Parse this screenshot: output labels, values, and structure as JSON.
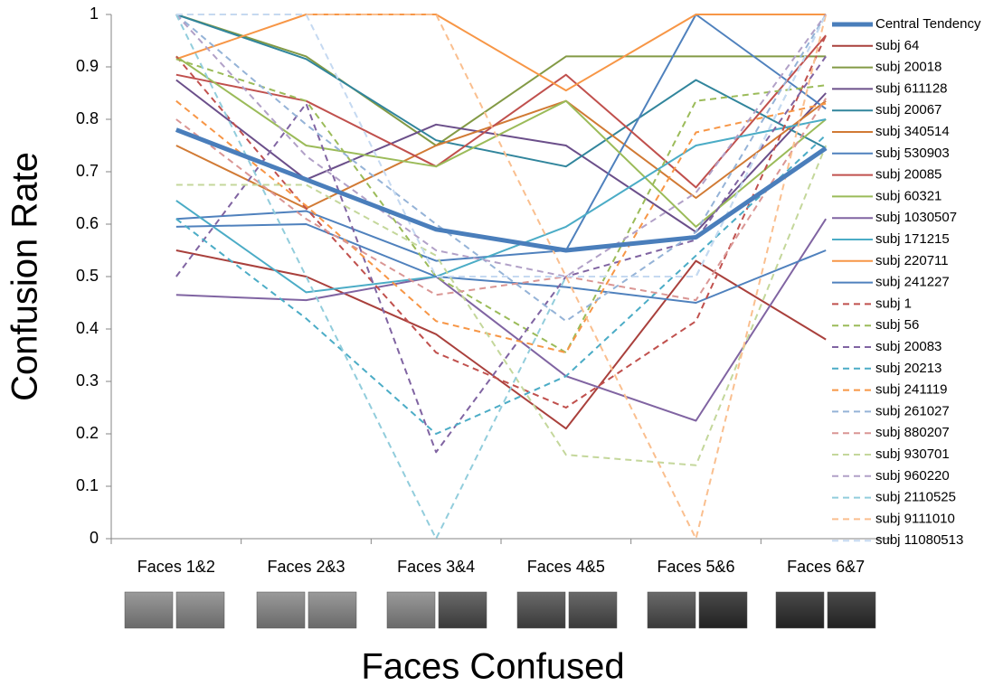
{
  "chart_data": {
    "type": "line",
    "x_label": "Faces Confused",
    "y_label": "Confusion Rate",
    "categories": [
      "Faces 1&2",
      "Faces 2&3",
      "Faces 3&4",
      "Faces 4&5",
      "Faces 5&6",
      "Faces 6&7"
    ],
    "ylim": [
      0,
      1
    ],
    "yticks": [
      0,
      0.1,
      0.2,
      0.3,
      0.4,
      0.5,
      0.6,
      0.7,
      0.8,
      0.9,
      1
    ],
    "legend": "right",
    "series": [
      {
        "name": "Central Tendency",
        "color": "#4a7ebb",
        "style": "thick",
        "values": [
          0.78,
          0.685,
          0.59,
          0.55,
          0.575,
          0.745
        ]
      },
      {
        "name": "subj 64",
        "color": "#a9403c",
        "style": "solid",
        "values": [
          0.55,
          0.5,
          0.39,
          0.21,
          0.53,
          0.38
        ]
      },
      {
        "name": "subj 20018",
        "color": "#839a45",
        "style": "solid",
        "values": [
          1,
          0.92,
          0.75,
          0.92,
          0.92,
          0.92
        ]
      },
      {
        "name": "subj 611128",
        "color": "#6b4f8a",
        "style": "solid",
        "values": [
          0.875,
          0.685,
          0.79,
          0.75,
          0.585,
          0.85
        ]
      },
      {
        "name": "subj 20067",
        "color": "#31859c",
        "style": "solid",
        "values": [
          1,
          0.915,
          0.76,
          0.71,
          0.875,
          0.745
        ]
      },
      {
        "name": "subj 340514",
        "color": "#d17a34",
        "style": "solid",
        "values": [
          0.75,
          0.63,
          0.75,
          0.835,
          0.65,
          0.835
        ]
      },
      {
        "name": "subj 530903",
        "color": "#4f81bd",
        "style": "solid",
        "values": [
          0.61,
          0.625,
          0.53,
          0.55,
          1,
          0.82
        ]
      },
      {
        "name": "subj 20085",
        "color": "#c0504d",
        "style": "solid",
        "values": [
          0.885,
          0.835,
          0.71,
          0.885,
          0.67,
          0.96
        ]
      },
      {
        "name": "subj 60321",
        "color": "#9bbb59",
        "style": "solid",
        "values": [
          0.92,
          0.75,
          0.71,
          0.835,
          0.595,
          0.8
        ]
      },
      {
        "name": "subj 1030507",
        "color": "#8064a2",
        "style": "solid",
        "values": [
          0.465,
          0.455,
          0.5,
          0.31,
          0.225,
          0.61
        ]
      },
      {
        "name": "subj 171215",
        "color": "#4bacc6",
        "style": "solid",
        "values": [
          0.645,
          0.47,
          0.5,
          0.595,
          0.75,
          0.8
        ]
      },
      {
        "name": "subj 220711",
        "color": "#f79646",
        "style": "solid",
        "values": [
          0.915,
          1,
          1,
          0.855,
          1,
          1
        ]
      },
      {
        "name": "subj 241227",
        "color": "#4f81bd",
        "style": "solid",
        "values": [
          0.595,
          0.6,
          0.5,
          0.48,
          0.45,
          0.55
        ]
      },
      {
        "name": "subj 1",
        "color": "#c0504d",
        "style": "dashed",
        "values": [
          0.92,
          0.63,
          0.355,
          0.25,
          0.415,
          0.96
        ]
      },
      {
        "name": "subj 56",
        "color": "#9bbb59",
        "style": "dashed",
        "values": [
          0.915,
          0.835,
          0.5,
          0.355,
          0.835,
          0.865
        ]
      },
      {
        "name": "subj 20083",
        "color": "#8064a2",
        "style": "dashed",
        "values": [
          0.5,
          0.83,
          0.165,
          0.5,
          0.57,
          0.92
        ]
      },
      {
        "name": "subj 20213",
        "color": "#4bacc6",
        "style": "dashed",
        "values": [
          0.61,
          0.42,
          0.2,
          0.31,
          0.54,
          0.77
        ]
      },
      {
        "name": "subj 241119",
        "color": "#f79646",
        "style": "dashed",
        "values": [
          0.835,
          0.635,
          0.415,
          0.355,
          0.775,
          0.83
        ]
      },
      {
        "name": "subj 261027",
        "color": "#95b3d7",
        "style": "dashed",
        "values": [
          1,
          0.79,
          0.6,
          0.415,
          0.585,
          1
        ]
      },
      {
        "name": "subj 880207",
        "color": "#da9694",
        "style": "dashed",
        "values": [
          0.8,
          0.61,
          0.465,
          0.5,
          0.455,
          0.84
        ]
      },
      {
        "name": "subj 930701",
        "color": "#c4d79b",
        "style": "dashed",
        "values": [
          0.675,
          0.675,
          0.54,
          0.16,
          0.14,
          0.75
        ]
      },
      {
        "name": "subj 960220",
        "color": "#b1a0c7",
        "style": "dashed",
        "values": [
          1,
          0.73,
          0.55,
          0.5,
          0.66,
          1
        ]
      },
      {
        "name": "subj 2110525",
        "color": "#92cddc",
        "style": "dashed",
        "values": [
          1,
          0.5,
          0,
          0.5,
          0.5,
          1
        ]
      },
      {
        "name": "subj 9111010",
        "color": "#fabf8f",
        "style": "dashed",
        "values": [
          1,
          1,
          1,
          0.5,
          0,
          1
        ]
      },
      {
        "name": "subj 11080513",
        "color": "#c5d9f1",
        "style": "dashed",
        "values": [
          1,
          1,
          0.5,
          0.5,
          0.5,
          1
        ]
      }
    ]
  }
}
